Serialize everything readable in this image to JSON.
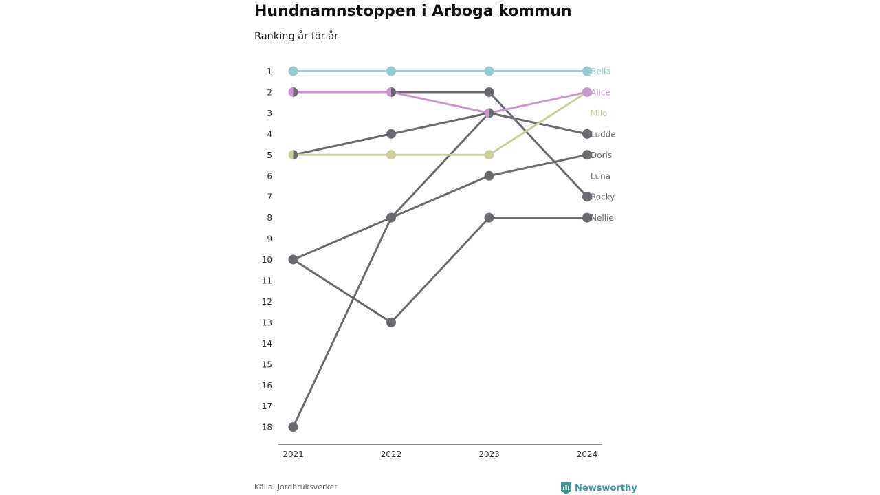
{
  "page": {
    "title": "Hundnamnstoppen i Arboga kommun",
    "subtitle": "Ranking år för år",
    "source": "Källa: Jordbruksverket",
    "brand": "Newsworthy",
    "brand_icon": "bar-chart-shield-icon"
  },
  "colors": {
    "grey": "#6b6a70",
    "teal": "#96cccb",
    "purple": "#c798cb",
    "olive": "#cccf9c",
    "axis": "#333333",
    "brand": "#3a9b95"
  },
  "chart_data": {
    "type": "line",
    "chart_subtype": "bump",
    "title": "Hundnamnstoppen i Arboga kommun",
    "subtitle": "Ranking år för år",
    "x": [
      "2021",
      "2022",
      "2023",
      "2024"
    ],
    "y_axis": {
      "reversed": true,
      "ylim": [
        1,
        18
      ],
      "ticks": [
        1,
        2,
        3,
        4,
        5,
        6,
        7,
        8,
        9,
        10,
        11,
        12,
        13,
        14,
        15,
        16,
        17,
        18
      ]
    },
    "grid": false,
    "legend": "direct labels at right end",
    "series": [
      {
        "name": "Bella",
        "color": "#96cccb",
        "values": [
          1,
          1,
          1,
          1
        ]
      },
      {
        "name": "Alice",
        "color": "#c798cb",
        "values": [
          2,
          2,
          3,
          2
        ]
      },
      {
        "name": "Milo",
        "color": "#cccf9c",
        "values": [
          5,
          5,
          5,
          2
        ]
      },
      {
        "name": "Ludde",
        "color": "#6b6a70",
        "values": [
          18,
          8,
          3,
          4
        ]
      },
      {
        "name": "Doris",
        "color": "#6b6a70",
        "values": [
          10,
          8,
          6,
          5
        ]
      },
      {
        "name": "Luna",
        "color": "#6b6a70",
        "values": [
          null,
          null,
          null,
          null
        ]
      },
      {
        "name": "Rocky",
        "color": "#6b6a70",
        "values": [
          2,
          2,
          2,
          7
        ]
      },
      {
        "name": "Nellie",
        "color": "#6b6a70",
        "values": [
          10,
          13,
          8,
          8
        ]
      },
      {
        "name": "",
        "color": "#6b6a70",
        "values": [
          5,
          4,
          3,
          null
        ]
      }
    ],
    "end_labels": [
      {
        "name": "Bella",
        "rank": 1,
        "color": "#96cccb"
      },
      {
        "name": "Alice",
        "rank": 2,
        "color": "#c798cb"
      },
      {
        "name": "Milo",
        "rank": 3,
        "color": "#cccf9c"
      },
      {
        "name": "Ludde",
        "rank": 4,
        "color": "#6b6a70"
      },
      {
        "name": "Doris",
        "rank": 5,
        "color": "#6b6a70"
      },
      {
        "name": "Luna",
        "rank": 6,
        "color": "#6b6a70"
      },
      {
        "name": "Rocky",
        "rank": 7,
        "color": "#6b6a70"
      },
      {
        "name": "Nellie",
        "rank": 8,
        "color": "#6b6a70"
      }
    ]
  }
}
